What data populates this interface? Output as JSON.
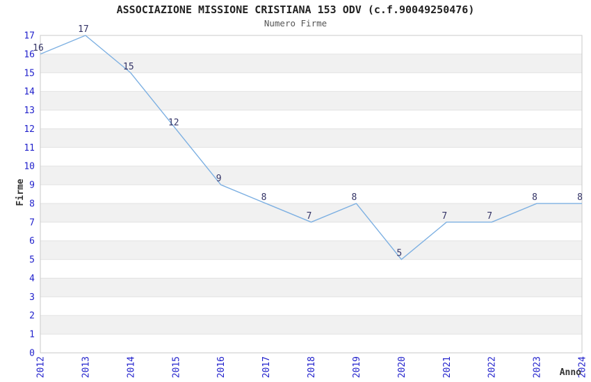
{
  "title": "ASSOCIAZIONE MISSIONE CRISTIANA 153 ODV (c.f.90049250476)",
  "subtitle": "Numero Firme",
  "chart_data": {
    "type": "line",
    "title": "ASSOCIAZIONE MISSIONE CRISTIANA 153 ODV (c.f.90049250476)",
    "subtitle": "Numero Firme",
    "categories": [
      "2012",
      "2013",
      "2014",
      "2015",
      "2016",
      "2017",
      "2018",
      "2019",
      "2020",
      "2021",
      "2022",
      "2023",
      "2024"
    ],
    "values": [
      16,
      17,
      15,
      12,
      9,
      8,
      7,
      8,
      5,
      7,
      7,
      8,
      8
    ],
    "xlabel": "Anno",
    "ylabel": "Firme",
    "ylim": [
      0,
      17
    ],
    "ytick_step": 1,
    "grid": true,
    "legend": "none",
    "colors": {
      "line": "#7db0e2",
      "band_white": "#ffffff",
      "band_gray": "#f1f1f1",
      "gridline": "#e2e2e2",
      "plot_border": "#c9c9c9",
      "tick_label": "#2222cc",
      "data_label": "#333366",
      "axis_title": "#333333"
    }
  }
}
